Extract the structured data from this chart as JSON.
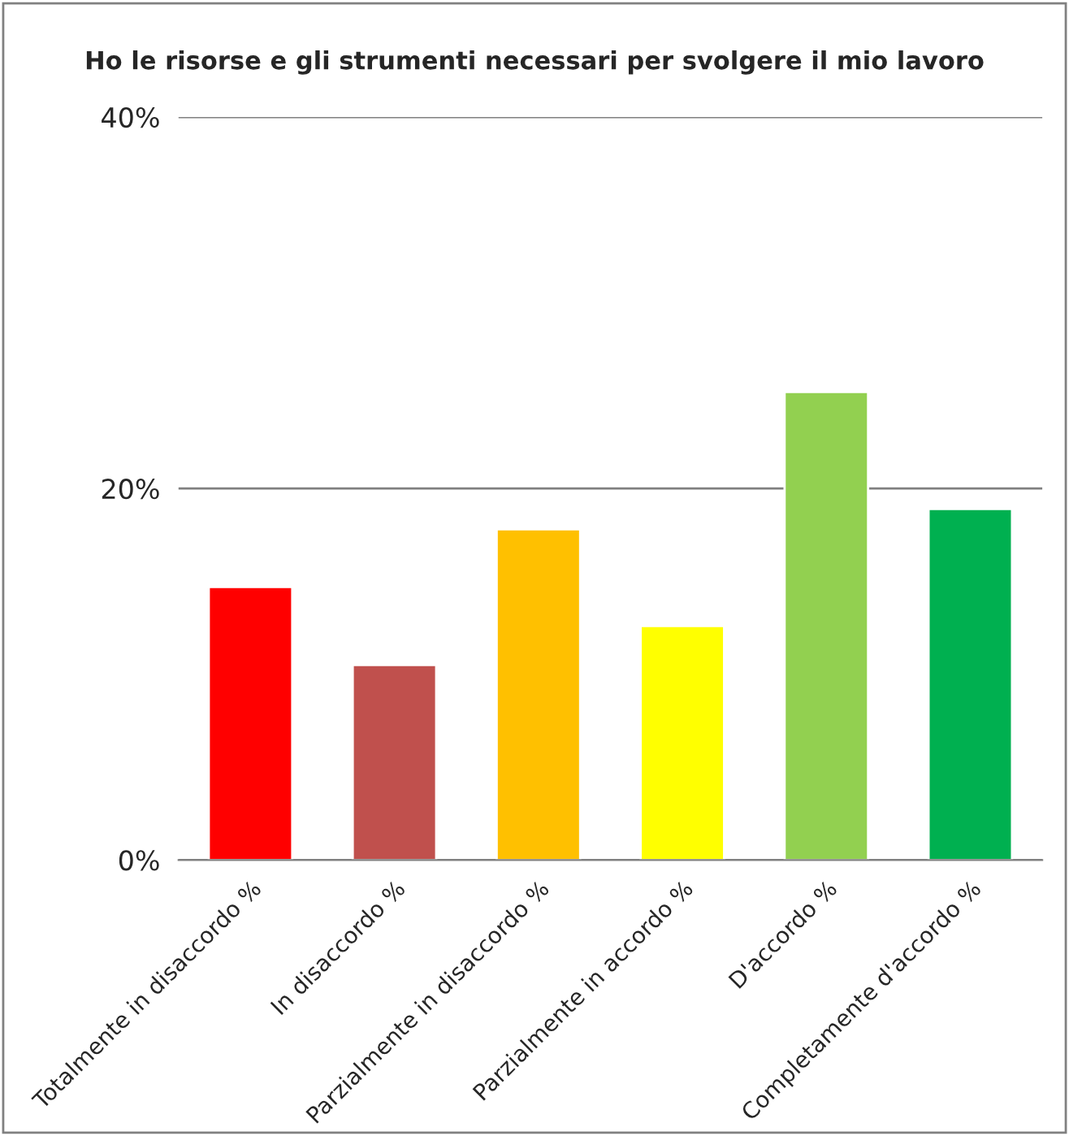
{
  "chart_data": {
    "type": "bar",
    "title": "Ho le risorse e gli strumenti necessari per svolgere il mio lavoro",
    "categories": [
      "Totalmente in disaccordo %",
      "In disaccordo %",
      "Parzialmente in disaccordo %",
      "Parzialmente in accordo %",
      "D'accordo %",
      "Completamente d'accordo %"
    ],
    "values": [
      14.7,
      10.5,
      17.8,
      12.6,
      25.2,
      18.9
    ],
    "colors": [
      "#ff0000",
      "#c0504d",
      "#ffc000",
      "#ffff00",
      "#92d050",
      "#00b050"
    ],
    "ylim": [
      0,
      40
    ],
    "yticks": [
      {
        "value": 0,
        "label": "0%"
      },
      {
        "value": 20,
        "label": "20%"
      },
      {
        "value": 40,
        "label": "40%"
      }
    ],
    "grid": "y"
  }
}
